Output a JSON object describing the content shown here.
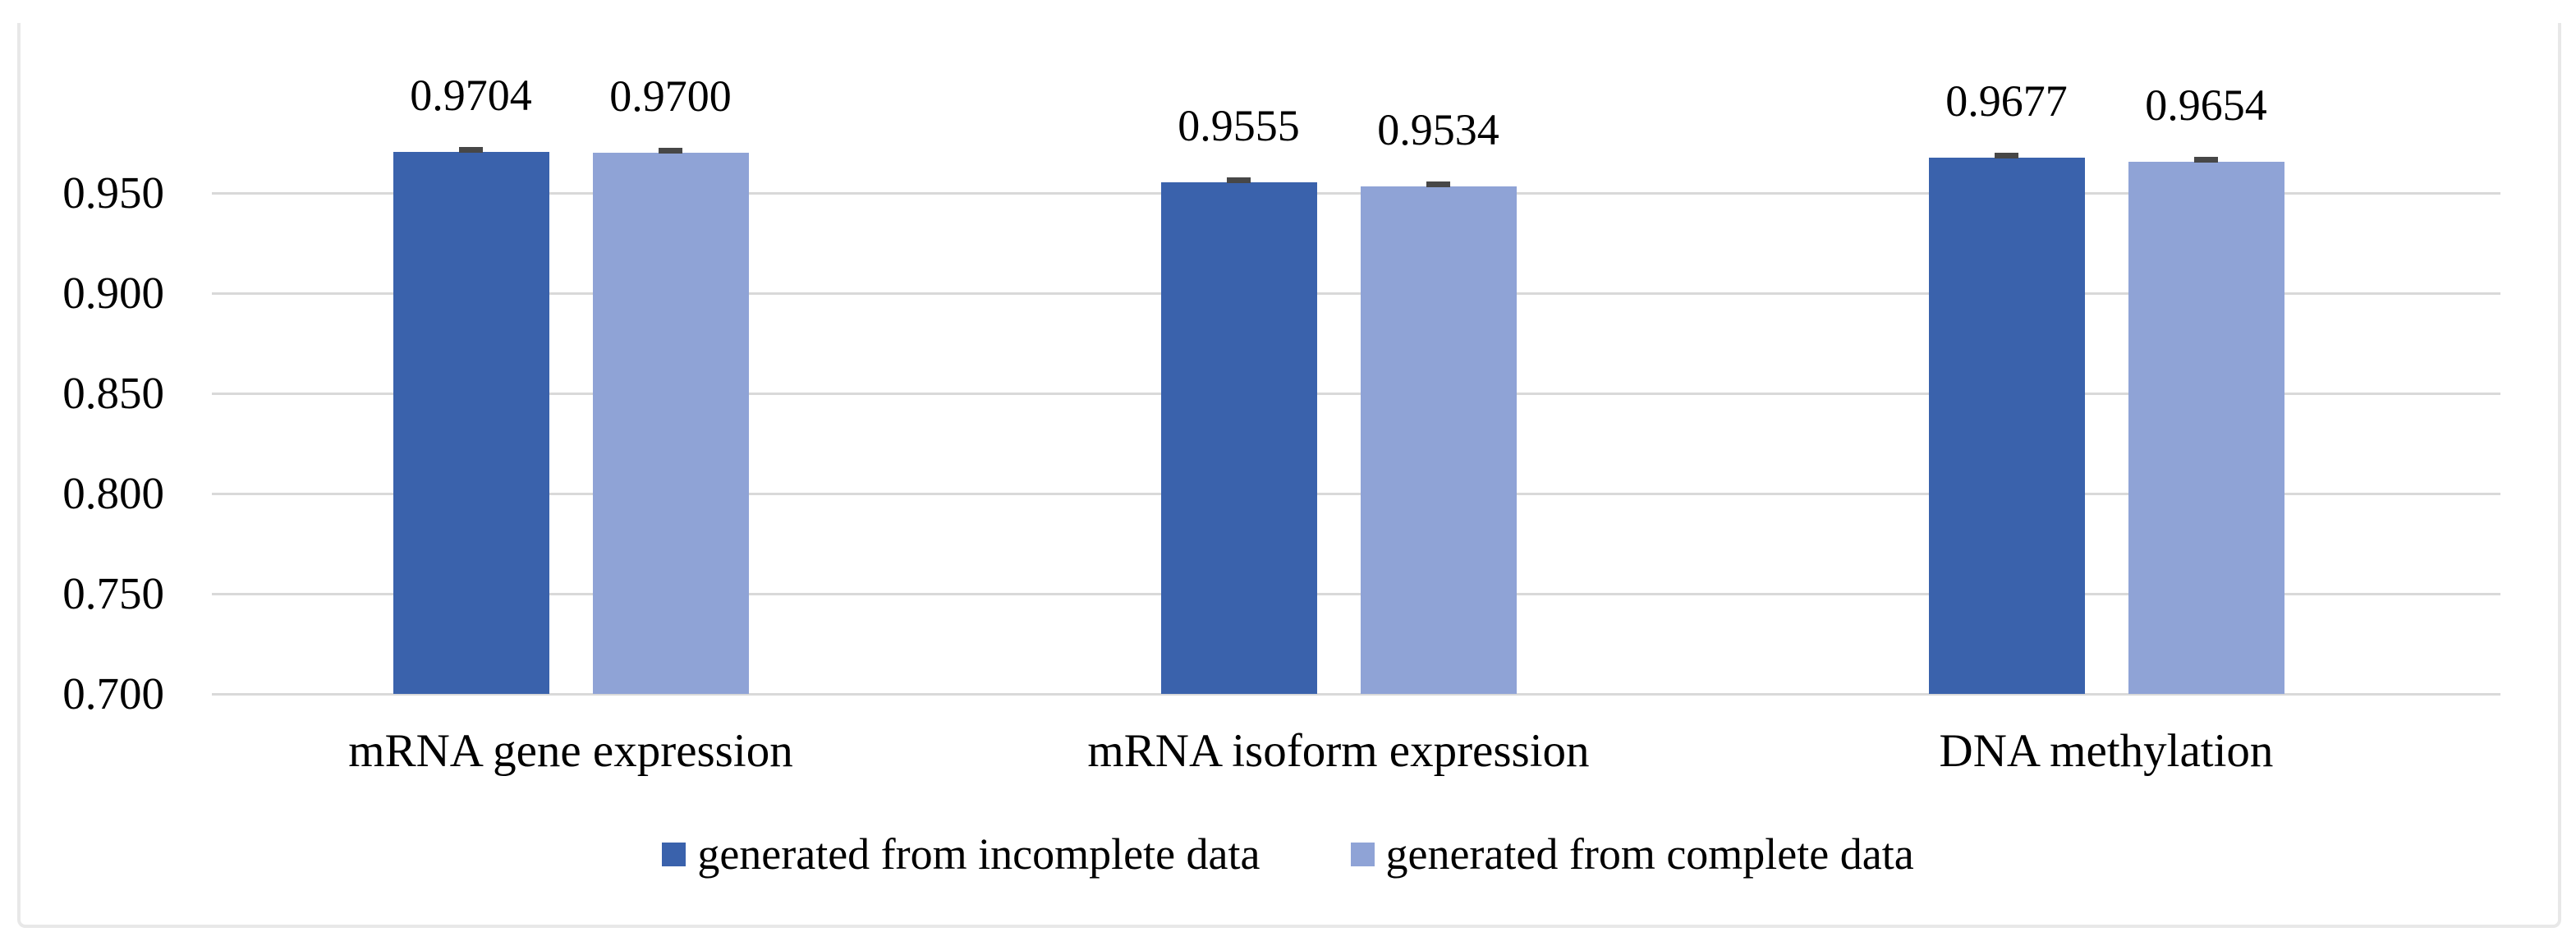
{
  "frame": {
    "border_color": "#e8e8e8",
    "background": "#ffffff"
  },
  "chart_data": {
    "type": "bar",
    "title": "",
    "categories": [
      "mRNA gene expression",
      "mRNA isoform expression",
      "DNA methylation"
    ],
    "series": [
      {
        "name": "generated from incomplete data",
        "color": "#3a62ac",
        "values": [
          0.9704,
          0.9555,
          0.9677
        ],
        "labels": [
          "0.9704",
          "0.9555",
          "0.9677"
        ]
      },
      {
        "name": "generated from complete data",
        "color": "#8fa3d6",
        "values": [
          0.97,
          0.9534,
          0.9654
        ],
        "labels": [
          "0.9700",
          "0.9534",
          "0.9654"
        ]
      }
    ],
    "error_bars": {
      "visible": true,
      "approx_value": 0.002,
      "color": "#474747"
    },
    "y_axis": {
      "min": 0.7,
      "max": 1.0,
      "tick_step": 0.05,
      "ticks": [
        0.95,
        0.9,
        0.85,
        0.8,
        0.75,
        0.7
      ],
      "tick_labels": [
        "0.950",
        "0.900",
        "0.850",
        "0.800",
        "0.750",
        "0.700"
      ],
      "gridline_color": "#d9d9d9",
      "grid": true
    },
    "legend": {
      "position": "bottom",
      "items": [
        "generated from incomplete data",
        "generated from complete data"
      ]
    }
  }
}
